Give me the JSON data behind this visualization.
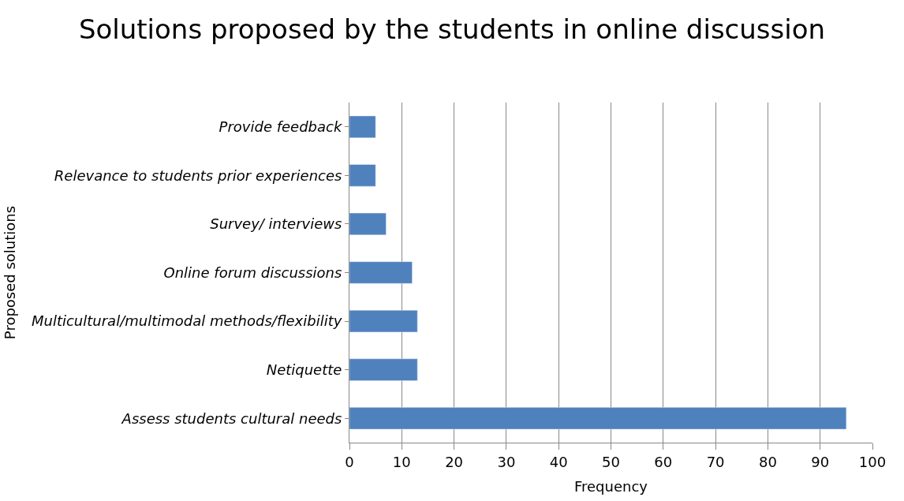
{
  "chart_data": {
    "type": "bar",
    "orientation": "horizontal",
    "title": "Solutions proposed by the students in online discussion",
    "xlabel": "Frequency",
    "ylabel": "Proposed solutions",
    "categories": [
      "Provide feedback",
      "Relevance to students prior experiences",
      "Survey/ interviews",
      "Online forum discussions",
      "Multicultural/multimodal methods/flexibility",
      "Netiquette",
      "Assess students cultural needs"
    ],
    "values": [
      5,
      5,
      7,
      12,
      13,
      13,
      95
    ],
    "color": "#4f81bd",
    "xlim": [
      0,
      100
    ],
    "xticks": [
      0,
      10,
      20,
      30,
      40,
      50,
      60,
      70,
      80,
      90,
      100
    ],
    "grid": "x",
    "legend": false
  }
}
